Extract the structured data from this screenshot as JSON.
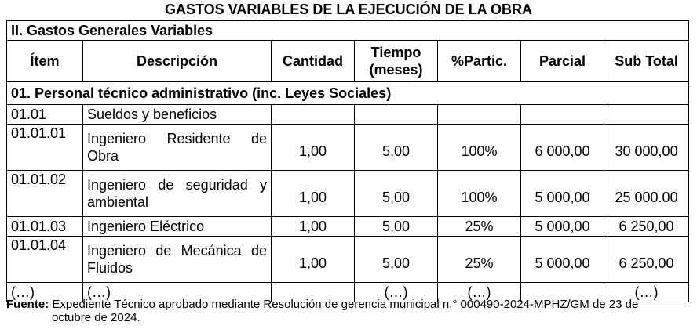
{
  "title": "GASTOS VARIABLES DE LA EJECUCIÓN DE LA OBRA",
  "section_title": "II. Gastos Generales Variables",
  "headers": {
    "item": "Ítem",
    "descripcion": "Descripción",
    "cantidad": "Cantidad",
    "tiempo": "Tiempo (meses)",
    "particip": "%Partic.",
    "parcial": "Parcial",
    "subtotal": "Sub Total"
  },
  "group_title": "01. Personal técnico administrativo (inc. Leyes Sociales)",
  "rows": [
    {
      "item": "01.01",
      "descripcion": "Sueldos y beneficios",
      "cantidad": "",
      "tiempo": "",
      "particip": "",
      "parcial": "",
      "subtotal": ""
    },
    {
      "item": "01.01.01",
      "descripcion": "Ingeniero Residente de Obra",
      "cantidad": "1,00",
      "tiempo": "5,00",
      "particip": "100%",
      "parcial": "6 000,00",
      "subtotal": "30 000,00"
    },
    {
      "item": "01.01.02",
      "descripcion": "Ingeniero de seguridad y ambiental",
      "cantidad": "1,00",
      "tiempo": "5,00",
      "particip": "100%",
      "parcial": "5 000,00",
      "subtotal": "25 000.00"
    },
    {
      "item": "01.01.03",
      "descripcion": "Ingeniero Eléctrico",
      "cantidad": "1,00",
      "tiempo": "5,00",
      "particip": "25%",
      "parcial": "5 000,00",
      "subtotal": "6 250,00"
    },
    {
      "item": "01.01.04",
      "descripcion": "Ingeniero de Mecánica de Fluidos",
      "cantidad": "1,00",
      "tiempo": "5,00",
      "particip": "25%",
      "parcial": "5 000,00",
      "subtotal": "6 250,00"
    },
    {
      "item": "(…)",
      "descripcion": "(…)",
      "cantidad": "",
      "tiempo": "(…)",
      "particip": "(…)",
      "parcial": "",
      "subtotal": "(…)"
    }
  ],
  "source": {
    "label": "Fuente:",
    "text": "Expediente Técnico aprobado mediante Resolución de gerencia municipal n.° 000490-2024-MPHZ/GM de 23 de",
    "text_cont": "octubre de 2024."
  }
}
